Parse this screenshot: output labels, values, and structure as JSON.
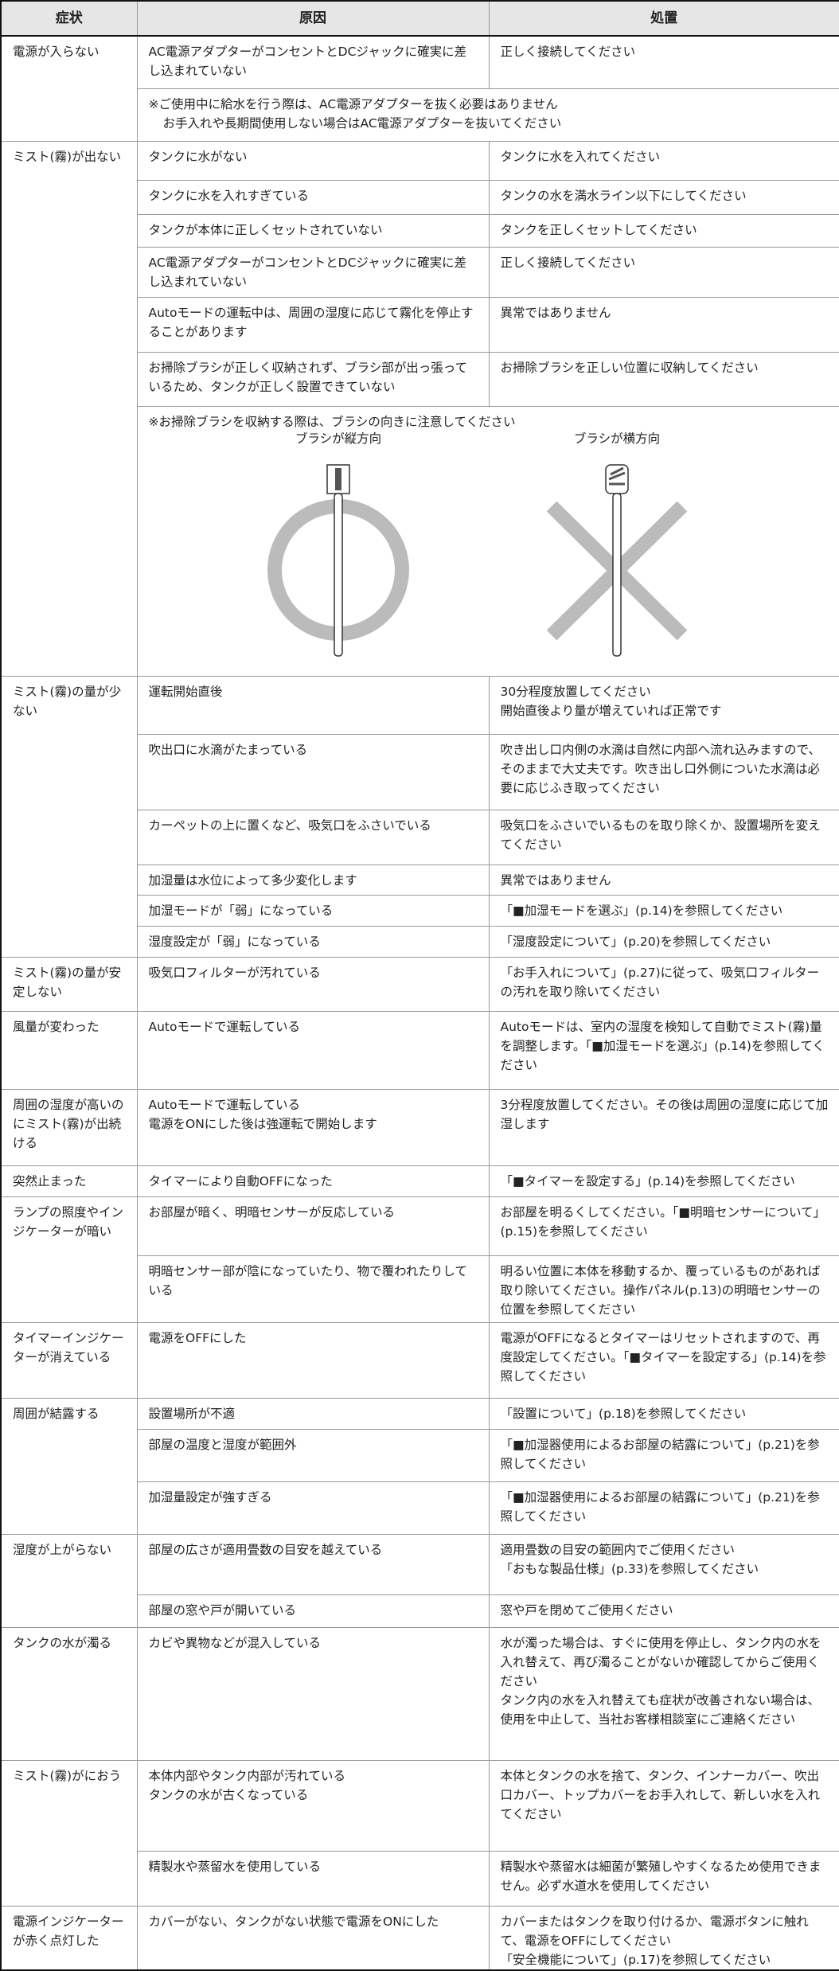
{
  "header": {
    "symptom": "症状",
    "cause": "原因",
    "action": "処置"
  },
  "groups": [
    {
      "symptom": "電源が入らない",
      "rows": [
        {
          "cause": "AC電源アダプターがコンセントとDCジャックに確実に差し込まれていない",
          "action": "正しく接続してください"
        },
        {
          "note": "※ご使用中に給水を行う際は、AC電源アダプターを抜く必要はありません\nお手入れや長期間使用しない場合はAC電源アダプターを抜いてください"
        }
      ]
    },
    {
      "symptom": "ミスト(霧)が出ない",
      "rows": [
        {
          "cause": "タンクに水がない",
          "action": "タンクに水を入れてください"
        },
        {
          "cause": "タンクに水を入れすぎている",
          "action": "タンクの水を満水ライン以下にしてください"
        },
        {
          "cause": "タンクが本体に正しくセットされていない",
          "action": "タンクを正しくセットしてください"
        },
        {
          "cause": "AC電源アダプターがコンセントとDCジャックに確実に差し込まれていない",
          "action": "正しく接続してください"
        },
        {
          "cause": "Autoモードの運転中は、周囲の湿度に応じて霧化を停止することがあります",
          "action": "異常ではありません"
        },
        {
          "cause": "お掃除ブラシが正しく収納されず、ブラシ部が出っ張っているため、タンクが正しく設置できていない",
          "action": "お掃除ブラシを正しい位置に収納してください"
        },
        {
          "note": "※お掃除ブラシを収納する際は、ブラシの向きに注意してください",
          "figure": {
            "good": "ブラシが縦方向",
            "bad": "ブラシが横方向"
          }
        }
      ]
    },
    {
      "symptom": "ミスト(霧)の量が少ない",
      "rows": [
        {
          "cause": "運転開始直後",
          "action": "30分程度放置してください\n開始直後より量が増えていれば正常です"
        },
        {
          "cause": "吹出口に水滴がたまっている",
          "action": "吹き出し口内側の水滴は自然に内部へ流れ込みますので、そのままで大丈夫です。吹き出し口外側についた水滴は必要に応じふき取ってください"
        },
        {
          "cause": "カーペットの上に置くなど、吸気口をふさいでいる",
          "action": "吸気口をふさいでいるものを取り除くか、設置場所を変えてください"
        },
        {
          "cause": "加湿量は水位によって多少変化します",
          "action": "異常ではありません"
        },
        {
          "cause": "加湿モードが「弱」になっている",
          "action": "「■加湿モードを選ぶ」(p.14)を参照してください"
        },
        {
          "cause": "湿度設定が「弱」になっている",
          "action": "「湿度設定について」(p.20)を参照してください"
        }
      ]
    },
    {
      "symptom": "ミスト(霧)の量が安定しない",
      "rows": [
        {
          "cause": "吸気口フィルターが汚れている",
          "action": "「お手入れについて」(p.27)に従って、吸気口フィルターの汚れを取り除いてください"
        }
      ]
    },
    {
      "symptom": "風量が変わった",
      "rows": [
        {
          "cause": "Autoモードで運転している",
          "action": "Autoモードは、室内の湿度を検知して自動でミスト(霧)量を調整します。「■加湿モードを選ぶ」(p.14)を参照してください"
        }
      ]
    },
    {
      "symptom": "周囲の湿度が高いのにミスト(霧)が出続ける",
      "rows": [
        {
          "cause": "Autoモードで運転している\n電源をONにした後は強運転で開始します",
          "action": "3分程度放置してください。その後は周囲の湿度に応じて加湿します"
        }
      ]
    },
    {
      "symptom": "突然止まった",
      "rows": [
        {
          "cause": "タイマーにより自動OFFになった",
          "action": "「■タイマーを設定する」(p.14)を参照してください"
        }
      ]
    },
    {
      "symptom": "ランプの照度やインジケーターが暗い",
      "rows": [
        {
          "cause": "お部屋が暗く、明暗センサーが反応している",
          "action": "お部屋を明るくしてください。「■明暗センサーについて」(p.15)を参照してください"
        },
        {
          "cause": "明暗センサー部が陰になっていたり、物で覆われたりしている",
          "action": "明るい位置に本体を移動するか、覆っているものがあれば取り除いてください。操作パネル(p.13)の明暗センサーの位置を参照してください"
        }
      ]
    },
    {
      "symptom": "タイマーインジケーターが消えている",
      "rows": [
        {
          "cause": "電源をOFFにした",
          "action": "電源がOFFになるとタイマーはリセットされますので、再度設定してください。「■タイマーを設定する」(p.14)を参照してください"
        }
      ]
    },
    {
      "symptom": "周囲が結露する",
      "rows": [
        {
          "cause": "設置場所が不適",
          "action": "「設置について」(p.18)を参照してください"
        },
        {
          "cause": "部屋の温度と湿度が範囲外",
          "action": "「■加湿器使用によるお部屋の結露について」(p.21)を参照してください"
        },
        {
          "cause": "加湿量設定が強すぎる",
          "action": "「■加湿器使用によるお部屋の結露について」(p.21)を参照してください"
        }
      ]
    },
    {
      "symptom": "湿度が上がらない",
      "rows": [
        {
          "cause": "部屋の広さが適用畳数の目安を越えている",
          "action": "適用畳数の目安の範囲内でご使用ください\n「おもな製品仕様」(p.33)を参照してください"
        },
        {
          "cause": "部屋の窓や戸が開いている",
          "action": "窓や戸を閉めてご使用ください"
        }
      ]
    },
    {
      "symptom": "タンクの水が濁る",
      "rows": [
        {
          "cause": "カビや異物などが混入している",
          "action": "水が濁った場合は、すぐに使用を停止し、タンク内の水を入れ替えて、再び濁ることがないか確認してからご使用ください\nタンク内の水を入れ替えても症状が改善されない場合は、使用を中止して、当社お客様相談室にご連絡ください"
        }
      ]
    },
    {
      "symptom": "ミスト(霧)がにおう",
      "rows": [
        {
          "cause": "本体内部やタンク内部が汚れている\nタンクの水が古くなっている",
          "action": "本体とタンクの水を捨て、タンク、インナーカバー、吹出口カバー、トップカバーをお手入れして、新しい水を入れてください"
        },
        {
          "cause": "精製水や蒸留水を使用している",
          "action": "精製水や蒸留水は細菌が繁殖しやすくなるため使用できません。必ず水道水を使用してください"
        }
      ]
    },
    {
      "symptom": "電源インジケーターが赤く点灯した",
      "rows": [
        {
          "cause": "カバーがない、タンクがない状態で電源をONにした",
          "action": "カバーまたはタンクを取り付けるか、電源ボタンに触れて、電源をOFFにしてください\n「安全機能について」(p.17)を参照してください"
        }
      ]
    }
  ]
}
